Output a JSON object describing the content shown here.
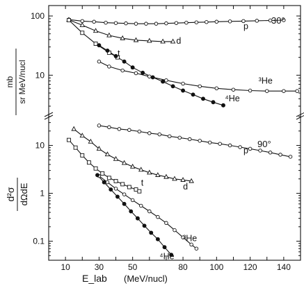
{
  "chart_data": {
    "type": "scatter",
    "xlabel": "E_lab",
    "xunit": "(MeV/nucl)",
    "ylabel_num": "d²σ",
    "ylabel_den": "dΩdE",
    "yunit_num": "mb",
    "yunit_den": "sr MeV/nucl",
    "x_ticks": [
      10,
      20,
      30,
      40,
      50,
      60,
      70,
      80,
      90,
      100,
      110,
      120,
      130,
      140,
      150
    ],
    "x_tick_labels": [
      {
        "x": 10,
        "text": "10"
      },
      {
        "x": 30,
        "text": "30"
      },
      {
        "x": 50,
        "text": "50"
      },
      {
        "x": 80,
        "text": "80"
      },
      {
        "x": 100,
        "text": "100"
      },
      {
        "x": 120,
        "text": "120"
      },
      {
        "x": 140,
        "text": "140"
      }
    ],
    "xlim": [
      0,
      150
    ],
    "panels": [
      {
        "angle": "30°",
        "ylim": [
          2,
          150
        ],
        "y_scale": "log",
        "y_tick_labels": [
          {
            "y": 100,
            "text": "100"
          },
          {
            "y": 10,
            "text": "10"
          }
        ],
        "series": [
          {
            "name": "p",
            "marker": "open-circle",
            "x": [
              12,
              20,
              27,
              34,
              40,
              46,
              52,
              58,
              64,
              70,
              76,
              82,
              88,
              94,
              100,
              108,
              116,
              124,
              132,
              140
            ],
            "y": [
              87,
              82,
              80,
              77,
              76,
              75,
              74,
              74,
              74,
              75,
              76,
              77,
              78,
              79,
              80,
              81,
              82,
              83,
              84,
              85
            ]
          },
          {
            "name": "d",
            "marker": "open-triangle",
            "x": [
              12,
              20,
              28,
              36,
              44,
              52,
              60,
              68,
              74
            ],
            "y": [
              86,
              70,
              56,
              47,
              42,
              39,
              38,
              37,
              37
            ]
          },
          {
            "name": "t",
            "marker": "open-square",
            "x": [
              12,
              20,
              28,
              36,
              41
            ],
            "y": [
              85,
              52,
              34,
              24,
              20
            ]
          },
          {
            "name": "³He",
            "marker": "open-circle",
            "x": [
              30,
              36,
              44,
              52,
              60,
              70,
              80,
              90,
              100,
              110,
              120,
              130,
              140,
              148
            ],
            "y": [
              17,
              14,
              12,
              10.8,
              9.5,
              8.2,
              7.2,
              6.5,
              6.0,
              5.7,
              5.5,
              5.4,
              5.4,
              5.4
            ]
          },
          {
            "name": "⁴He",
            "marker": "solid-circle",
            "x": [
              30,
              35,
              40,
              45,
              50,
              56,
              62,
              68,
              74,
              80,
              86,
              92,
              98,
              104
            ],
            "y": [
              32,
              26,
              21,
              17,
              13.5,
              11,
              9.2,
              7.8,
              6.5,
              5.5,
              4.7,
              4.0,
              3.5,
              3.1
            ]
          }
        ],
        "labels": [
          {
            "text": "p",
            "x": 116,
            "y": 60
          },
          {
            "text": "d",
            "x": 76,
            "y": 34
          },
          {
            "text": "t",
            "x": 41,
            "y": 21
          },
          {
            "text": "³He",
            "x": 125,
            "y": 7.2
          },
          {
            "text": "⁴He",
            "x": 105,
            "y": 3.6
          }
        ]
      },
      {
        "angle": "90°",
        "ylim": [
          0.04,
          40
        ],
        "y_scale": "log",
        "y_tick_labels": [
          {
            "y": 10,
            "text": "10"
          },
          {
            "y": 1,
            "text": "1"
          },
          {
            "y": 0.1,
            "text": "0.1"
          }
        ],
        "series": [
          {
            "name": "p",
            "marker": "open-circle",
            "x": [
              30,
              36,
              42,
              48,
              54,
              60,
              66,
              72,
              78,
              84,
              90,
              96,
              102,
              108,
              114,
              120,
              126,
              132,
              138,
              144
            ],
            "y": [
              26,
              24,
              22,
              21,
              19.5,
              18,
              17,
              15.5,
              14.5,
              13.5,
              12.5,
              11.5,
              10.8,
              10,
              9.2,
              8.5,
              7.8,
              7.1,
              6.4,
              5.8
            ]
          },
          {
            "name": "d",
            "marker": "open-triangle",
            "x": [
              15,
              20,
              25,
              30,
              35,
              40,
              45,
              50,
              55,
              60,
              65,
              70,
              75,
              80,
              85
            ],
            "y": [
              22,
              16,
              12,
              8.5,
              6.5,
              5.2,
              4.3,
              3.6,
              3.1,
              2.7,
              2.4,
              2.2,
              2.0,
              1.9,
              1.8
            ]
          },
          {
            "name": "t",
            "marker": "open-square",
            "x": [
              12,
              16,
              20,
              24,
              28,
              32,
              36,
              40,
              44,
              48,
              52,
              54
            ],
            "y": [
              13,
              9,
              6.2,
              4.4,
              3.3,
              2.6,
              2.1,
              1.8,
              1.55,
              1.35,
              1.2,
              1.1
            ]
          },
          {
            "name": "³He",
            "marker": "open-circle",
            "x": [
              30,
              35,
              40,
              45,
              50,
              55,
              60,
              65,
              70,
              75,
              80,
              85,
              88
            ],
            "y": [
              2.3,
              1.7,
              1.25,
              0.95,
              0.72,
              0.55,
              0.42,
              0.32,
              0.24,
              0.17,
              0.12,
              0.085,
              0.07
            ]
          },
          {
            "name": "⁴He",
            "marker": "solid-circle",
            "x": [
              29,
              33,
              37,
              41,
              45,
              49,
              53,
              57,
              61,
              65,
              69,
              73
            ],
            "y": [
              2.4,
              1.7,
              1.2,
              0.85,
              0.6,
              0.42,
              0.3,
              0.21,
              0.15,
              0.11,
              0.075,
              0.052
            ]
          }
        ],
        "labels": [
          {
            "text": "p",
            "x": 116,
            "y": 6.8
          },
          {
            "text": "d",
            "x": 80,
            "y": 1.2
          },
          {
            "text": "t",
            "x": 55,
            "y": 1.45
          },
          {
            "text": "³He",
            "x": 80,
            "y": 0.1
          },
          {
            "text": "⁴He",
            "x": 66,
            "y": 0.042
          }
        ]
      }
    ]
  }
}
